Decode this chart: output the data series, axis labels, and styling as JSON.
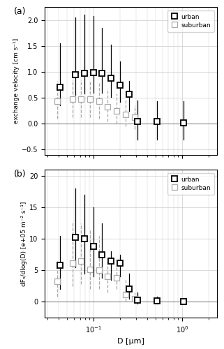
{
  "panel_a": {
    "urban": {
      "x": [
        0.04,
        0.06,
        0.075,
        0.095,
        0.12,
        0.15,
        0.19,
        0.24,
        0.3,
        0.5,
        1.0
      ],
      "median": [
        0.7,
        0.95,
        0.97,
        0.98,
        0.97,
        0.88,
        0.75,
        0.57,
        0.05,
        0.05,
        0.02
      ],
      "p25": [
        0.35,
        0.55,
        0.58,
        0.6,
        0.6,
        0.52,
        0.42,
        0.25,
        -0.3,
        -0.3,
        -0.3
      ],
      "p75": [
        1.55,
        2.05,
        2.1,
        2.08,
        1.85,
        1.52,
        1.2,
        0.82,
        0.45,
        0.43,
        0.43
      ]
    },
    "suburban": {
      "x": [
        0.04,
        0.06,
        0.075,
        0.095,
        0.12,
        0.15,
        0.19,
        0.24,
        0.3
      ],
      "median": [
        0.44,
        0.48,
        0.48,
        0.47,
        0.43,
        0.33,
        0.25,
        0.18,
        0.12
      ],
      "p25": [
        0.1,
        0.12,
        0.12,
        0.12,
        0.1,
        0.05,
        0.0,
        -0.05,
        -0.1
      ],
      "p75": [
        0.82,
        0.85,
        0.85,
        0.82,
        0.78,
        0.68,
        0.58,
        0.48,
        0.35
      ]
    },
    "ylabel": "exchange velocity [cm s⁻¹]",
    "ylim": [
      -0.6,
      2.25
    ],
    "yticks": [
      -0.5,
      0.0,
      0.5,
      1.0,
      1.5,
      2.0
    ],
    "label": "(a)"
  },
  "panel_b": {
    "urban": {
      "x": [
        0.04,
        0.06,
        0.075,
        0.095,
        0.12,
        0.15,
        0.19,
        0.24,
        0.3,
        0.5,
        1.0
      ],
      "median": [
        5.8,
        10.2,
        10.0,
        8.8,
        7.5,
        6.5,
        6.2,
        2.0,
        0.3,
        0.2,
        0.05
      ],
      "p25": [
        2.0,
        5.5,
        4.5,
        4.0,
        3.8,
        3.5,
        4.0,
        0.5,
        -0.3,
        -0.3,
        -0.3
      ],
      "p75": [
        10.5,
        18.0,
        17.0,
        15.0,
        12.5,
        8.0,
        7.5,
        4.5,
        1.5,
        0.8,
        0.5
      ]
    },
    "suburban": {
      "x": [
        0.04,
        0.06,
        0.075,
        0.095,
        0.12,
        0.15,
        0.19,
        0.24,
        0.3
      ],
      "median": [
        3.3,
        6.2,
        6.5,
        5.2,
        5.0,
        4.0,
        3.8,
        1.2,
        0.5
      ],
      "p25": [
        0.8,
        2.5,
        2.8,
        2.0,
        2.0,
        1.5,
        2.0,
        0.0,
        -0.3
      ],
      "p75": [
        6.5,
        12.8,
        12.5,
        11.5,
        10.5,
        6.5,
        6.0,
        3.5,
        1.5
      ]
    },
    "ylabel": "dFₙ/dlog(D) [e+05 m⁻² s⁻¹]",
    "ylim": [
      -2.5,
      21
    ],
    "yticks": [
      0,
      5,
      10,
      15,
      20
    ],
    "label": "(b)"
  },
  "xlabel": "D [μm]",
  "xlim": [
    0.028,
    2.5
  ],
  "urban_color": "#000000",
  "suburban_color": "#aaaaaa",
  "grid_color": "#cccccc",
  "zero_line_color": "#888888"
}
